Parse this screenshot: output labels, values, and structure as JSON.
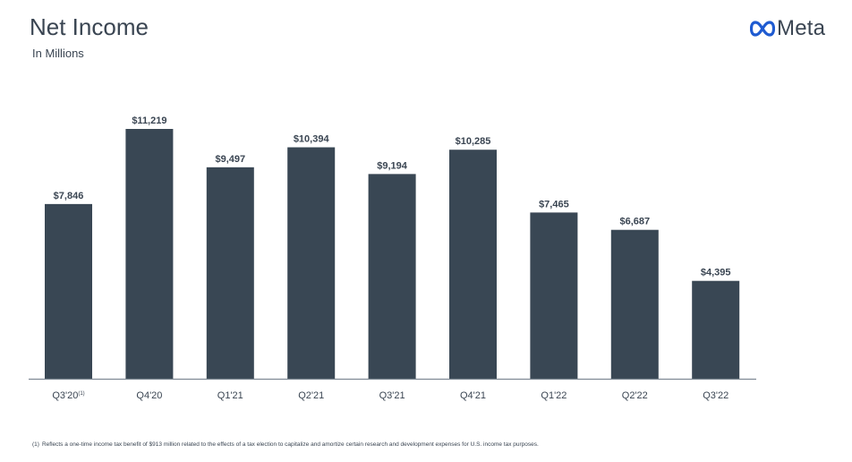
{
  "header": {
    "title": "Net Income",
    "subtitle": "In Millions"
  },
  "brand": {
    "name": "Meta",
    "logo_icon": "meta-infinity-icon",
    "logo_color": "#1f5bd1"
  },
  "chart_data": {
    "type": "bar",
    "title": "Net Income",
    "subtitle": "In Millions",
    "categories": [
      "Q3'20",
      "Q4'20",
      "Q1'21",
      "Q2'21",
      "Q3'21",
      "Q4'21",
      "Q1'22",
      "Q2'22",
      "Q3'22"
    ],
    "category_footnote_markers": [
      "(1)",
      "",
      "",
      "",
      "",
      "",
      "",
      "",
      ""
    ],
    "values": [
      7846,
      11219,
      9497,
      10394,
      9194,
      10285,
      7465,
      6687,
      4395
    ],
    "value_labels": [
      "$7,846",
      "$11,219",
      "$9,497",
      "$10,394",
      "$9,194",
      "$10,285",
      "$7,465",
      "$6,687",
      "$4,395"
    ],
    "ylim": [
      0,
      11219
    ],
    "bar_color": "#394754",
    "grid": false,
    "legend": "none"
  },
  "footnote": {
    "marker": "(1)",
    "text": "Reflects a one-time income tax benefit of $913 million related to the effects of a tax election to capitalize and amortize certain research and development expenses for U.S. income tax purposes."
  }
}
